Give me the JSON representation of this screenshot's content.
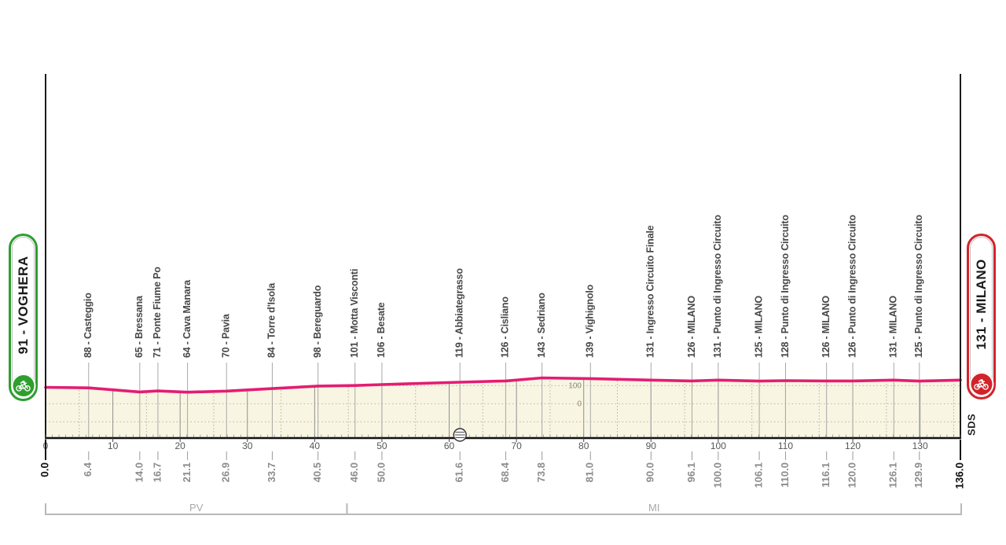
{
  "page": {
    "background": "#ffffff"
  },
  "start_badge": {
    "label": "91 - VOGHERA",
    "color": "#2f9e2f",
    "icon": "cyclist-icon"
  },
  "finish_badge": {
    "label": "131 - MILANO",
    "color": "#d2232a",
    "icon": "cyclist-icon"
  },
  "watermark": "SDS",
  "chart_data": {
    "type": "area",
    "x_unit": "km",
    "y_unit": "m",
    "x_range": [
      0,
      136
    ],
    "x_major_ticks": [
      0,
      10,
      20,
      30,
      40,
      50,
      60,
      70,
      80,
      90,
      100,
      110,
      120,
      130
    ],
    "x_minor_tick_step_km": 1,
    "x_dotted_grid_step_km": 5,
    "elevation_scale": {
      "labeled_values": [
        100,
        0
      ],
      "grid_step_m": 100
    },
    "line_color": "#e31d72",
    "fill_color": "#f8f5e2",
    "start": {
      "km": 0.0,
      "elevation_m": 91,
      "name": "VOGHERA"
    },
    "finish": {
      "km": 136.0,
      "elevation_m": 131,
      "name": "MILANO"
    },
    "waypoints": [
      {
        "km": 6.4,
        "elevation_m": 88,
        "name": "Casteggio"
      },
      {
        "km": 14.0,
        "elevation_m": 65,
        "name": "Bressana"
      },
      {
        "km": 16.7,
        "elevation_m": 71,
        "name": "Ponte Fiume Po"
      },
      {
        "km": 21.1,
        "elevation_m": 64,
        "name": "Cava Manara"
      },
      {
        "km": 26.9,
        "elevation_m": 70,
        "name": "Pavia"
      },
      {
        "km": 33.7,
        "elevation_m": 84,
        "name": "Torre d'Isola"
      },
      {
        "km": 40.5,
        "elevation_m": 98,
        "name": "Bereguardo"
      },
      {
        "km": 46.0,
        "elevation_m": 101,
        "name": "Motta Visconti"
      },
      {
        "km": 50.0,
        "elevation_m": 106,
        "name": "Besate"
      },
      {
        "km": 61.6,
        "elevation_m": 119,
        "name": "Abbiategrasso"
      },
      {
        "km": 68.4,
        "elevation_m": 126,
        "name": "Cisliano"
      },
      {
        "km": 73.8,
        "elevation_m": 143,
        "name": "Sedriano"
      },
      {
        "km": 81.0,
        "elevation_m": 139,
        "name": "Vighignolo"
      },
      {
        "km": 90.0,
        "elevation_m": 131,
        "name": "Ingresso Circuito Finale"
      },
      {
        "km": 96.1,
        "elevation_m": 126,
        "name": "MILANO"
      },
      {
        "km": 100.0,
        "elevation_m": 131,
        "name": "Punto di Ingresso Circuito"
      },
      {
        "km": 106.1,
        "elevation_m": 125,
        "name": "MILANO"
      },
      {
        "km": 110.0,
        "elevation_m": 128,
        "name": "Punto di Ingresso Circuito"
      },
      {
        "km": 116.1,
        "elevation_m": 126,
        "name": "MILANO"
      },
      {
        "km": 120.0,
        "elevation_m": 126,
        "name": "Punto di Ingresso Circuito"
      },
      {
        "km": 126.1,
        "elevation_m": 131,
        "name": "MILANO"
      },
      {
        "km": 129.9,
        "elevation_m": 125,
        "name": "Punto di Ingresso Circuito"
      }
    ],
    "feed_zone": {
      "km": 61.6,
      "icon": "feed-station-icon"
    },
    "provinces": [
      {
        "code": "PV",
        "from_km": 0.0,
        "to_km": 44.8
      },
      {
        "code": "MI",
        "from_km": 44.8,
        "to_km": 136.0
      }
    ]
  }
}
